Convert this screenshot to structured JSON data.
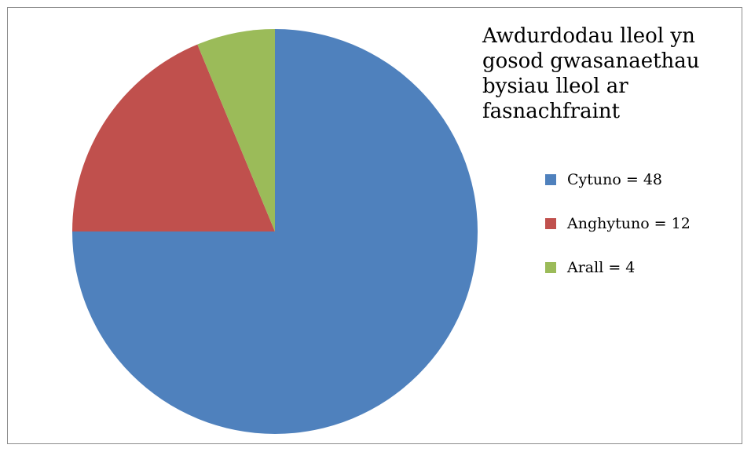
{
  "chart_data": {
    "type": "pie",
    "title": "Awdurdodau lleol yn\ngosod gwasanaethau\nbysiau lleol ar\nfasnachfraint",
    "categories": [
      "Cytuno",
      "Anghytuno",
      "Arall"
    ],
    "values": [
      48,
      12,
      4
    ],
    "colors": [
      "#4F81BD",
      "#C0504D",
      "#9BBB59"
    ],
    "legend_labels": [
      "Cytuno = 48",
      "Anghytuno = 12",
      "Arall = 4"
    ],
    "legend_position": "right",
    "start_angle": "top (12 o'clock), clockwise"
  }
}
